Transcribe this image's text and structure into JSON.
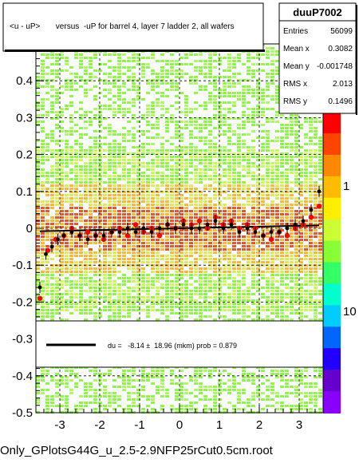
{
  "title": "<u - uP>       versus  -uP for barrel 4, layer 7 ladder 2, all wafers",
  "footer": "Only_GPlotsG44G_u_2.5-2.9NFP25rCut0.5cm.root",
  "stats": {
    "name": "duuP7002",
    "rows": [
      {
        "label": "Entries",
        "value": "56099"
      },
      {
        "label": "Mean x",
        "value": "0.3082"
      },
      {
        "label": "Mean y",
        "value": "-0.001748"
      },
      {
        "label": "RMS x",
        "value": "2.013"
      },
      {
        "label": "RMS y",
        "value": "0.1496"
      }
    ]
  },
  "fit": {
    "text": "du =   -8.14 ±  18.96 (mkm) prob = 0.879"
  },
  "colorbar": {
    "labels": [
      "1",
      "10"
    ]
  },
  "chart_data": {
    "type": "scatter",
    "title": "<u - uP>       versus  -uP for barrel 4, layer 7 ladder 2, all wafers",
    "xlim": [
      -3.6,
      3.6
    ],
    "ylim": [
      -0.5,
      0.5
    ],
    "xticks": [
      -3,
      -2,
      -1,
      0,
      1,
      2,
      3
    ],
    "yticks": [
      -0.5,
      -0.4,
      -0.3,
      -0.2,
      -0.1,
      0,
      0.1,
      0.2,
      0.3,
      0.4
    ],
    "ytick_labels": [
      "-0.5",
      "-0.4",
      "-0.3",
      "-0.2",
      "-0.1",
      "0",
      "0.1",
      "0.2",
      "0.3",
      "0.4"
    ],
    "grid": true,
    "colors": {
      "red": "#ff0000",
      "black": "#000000",
      "band_core": "#ee5522",
      "band_mid": "#ffbb22",
      "band_outer": "#88ff33"
    },
    "profile_red": {
      "x": [
        -3.5,
        -3.3,
        -3.1,
        -2.9,
        -2.7,
        -2.5,
        -2.3,
        -2.1,
        -1.9,
        -1.7,
        -1.5,
        -1.3,
        -1.1,
        -0.9,
        -0.7,
        -0.5,
        -0.3,
        -0.1,
        0.1,
        0.3,
        0.5,
        0.7,
        0.9,
        1.1,
        1.3,
        1.5,
        1.7,
        1.9,
        2.1,
        2.3,
        2.5,
        2.7,
        2.9,
        3.1,
        3.3,
        3.5
      ],
      "y": [
        -0.19,
        -0.06,
        -0.03,
        -0.02,
        0.0,
        -0.02,
        -0.01,
        -0.02,
        -0.03,
        -0.01,
        0.0,
        -0.02,
        0.01,
        -0.01,
        0.0,
        -0.02,
        0.01,
        0.0,
        0.02,
        0.01,
        0.02,
        0.0,
        0.03,
        0.01,
        0.02,
        0.0,
        0.01,
        0.0,
        -0.02,
        -0.03,
        -0.01,
        -0.02,
        0.0,
        0.01,
        0.03,
        0.06
      ]
    },
    "profile_black": {
      "x": [
        -3.5,
        -3.35,
        -3.2,
        -3.05,
        -2.9,
        -2.7,
        -2.5,
        -2.3,
        -2.1,
        -1.9,
        -1.7,
        -1.5,
        -1.3,
        -1.1,
        -0.9,
        -0.7,
        -0.5,
        -0.3,
        -0.1,
        0.1,
        0.3,
        0.5,
        0.7,
        0.9,
        1.1,
        1.3,
        1.5,
        1.7,
        1.9,
        2.1,
        2.3,
        2.5,
        2.7,
        2.9,
        3.1,
        3.3,
        3.5
      ],
      "y": [
        -0.16,
        -0.07,
        -0.05,
        -0.03,
        -0.02,
        -0.01,
        -0.02,
        -0.03,
        -0.02,
        -0.02,
        -0.01,
        -0.01,
        0.0,
        -0.01,
        0.0,
        -0.01,
        0.0,
        0.01,
        0.0,
        0.01,
        0.0,
        0.0,
        0.01,
        0.02,
        0.0,
        0.01,
        -0.01,
        0.0,
        -0.01,
        -0.02,
        -0.01,
        -0.01,
        0.0,
        0.01,
        0.02,
        0.05,
        0.1
      ]
    },
    "fit_line": {
      "x": [
        -3.5,
        3.5
      ],
      "y": [
        -0.008,
        0.008
      ]
    }
  }
}
